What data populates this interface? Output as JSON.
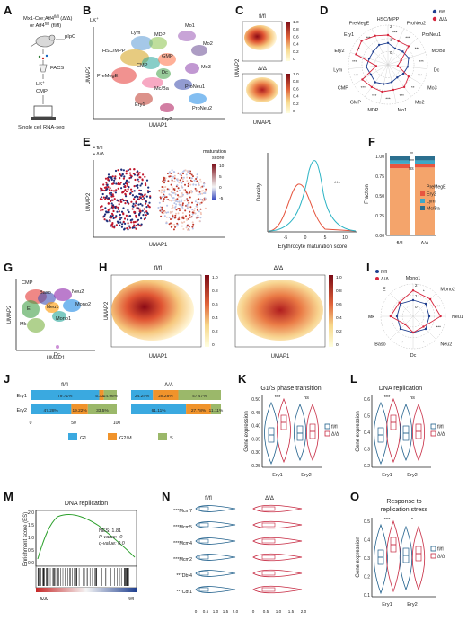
{
  "panels": {
    "A": {
      "letter": "A",
      "line1": "Mx1-Cre;Atf4",
      "sup1": "fl/fl",
      "suf1": " (Δ/Δ)",
      "line2": "or Atf4",
      "sup2": "fl/fl",
      "suf2": " (fl/fl)",
      "pipc": "pIpC",
      "facs": "FACS",
      "lk": "LK",
      "lksup": "+",
      "cmp": "CMP",
      "seq": "Single cell RNA-seq"
    },
    "B": {
      "letter": "B",
      "lk": "LK",
      "lksup": "+",
      "ylabel": "UMAP2",
      "xlabel": "UMAP1",
      "clusters": [
        "Lym",
        "MDP",
        "Mo1",
        "Mo2",
        "HSC/MPP",
        "CMP",
        "GMP",
        "Mo3",
        "Dc",
        "PreMegE",
        "Mc/Ba",
        "ProNeu1",
        "Ery1",
        "ProNeu2",
        "Ery2"
      ]
    },
    "C": {
      "letter": "C",
      "top": "fl/fl",
      "bottom": "Δ/Δ",
      "ylabel": "UMAP2",
      "xlabel": "UMAP1",
      "ticks": [
        "1.0",
        "0.8",
        "0.6",
        "0.4",
        "0.2",
        "0"
      ]
    },
    "D": {
      "letter": "D",
      "legend": [
        "fl/fl",
        "Δ/Δ"
      ],
      "colors": [
        "#1f3f8f",
        "#d7263d"
      ],
      "axes": [
        "HSC/MPP",
        "ProNeu2",
        "ProNeu1",
        "Mc/Ba",
        "Dc",
        "Mo3",
        "Mo2",
        "Mo1",
        "MDP",
        "GMP",
        "CMP",
        "Lym",
        "Ery2",
        "Ery1",
        "PreMegE"
      ],
      "rings": [
        "2",
        "1",
        "0"
      ],
      "stars": [
        "***",
        "***",
        "***",
        "***",
        "***",
        "**",
        "***",
        "***",
        "***",
        "***",
        "***",
        "***",
        "*",
        "***"
      ],
      "ring_values_flfl": [
        0.55,
        0.45,
        0.5,
        0.55,
        0.5,
        0.45,
        0.4,
        0.45,
        0.5,
        0.55,
        0.5,
        0.55,
        0.5,
        0.5,
        0.55
      ],
      "ring_values_dd": [
        0.75,
        0.65,
        0.7,
        0.35,
        0.25,
        0.6,
        0.7,
        0.65,
        0.7,
        0.7,
        0.75,
        0.3,
        0.85,
        0.9,
        0.8
      ]
    },
    "E": {
      "letter": "E",
      "legend": [
        "fl/fl",
        "Δ/Δ"
      ],
      "scale_title": "maturation",
      "scale_title2": "score",
      "scale_ticks": [
        "10",
        "5",
        "0",
        "-5"
      ],
      "ylabel": "UMAP2",
      "xlabel": "UMAP1",
      "density_ylabel": "Density",
      "density_xlabel": "Erythrocyte maturation score",
      "density_xticks": [
        "-5",
        "0",
        "5",
        "10"
      ],
      "stars": "***"
    },
    "F": {
      "letter": "F",
      "ylabel": "Fraction",
      "yticks": [
        "1.00",
        "0.75",
        "0.50",
        "0.25",
        "0.00"
      ],
      "categories": [
        "fl/fl",
        "Δ/Δ"
      ],
      "legend": [
        "PreMegE",
        "Ery2",
        "Lym",
        "Mc/Ba"
      ],
      "colors": [
        "#f4a46b",
        "#e8563f",
        "#3fa7c6",
        "#2b6f8f"
      ],
      "stars": [
        "**",
        "***",
        "ns"
      ]
    },
    "G": {
      "letter": "G",
      "clusters": [
        "CMP",
        "E",
        "Baso",
        "Neu2",
        "Neu1",
        "Mono2",
        "Mono1",
        "Mk",
        "Dc"
      ],
      "ylabel": "UMAP2",
      "xlabel": "UMAP1"
    },
    "H": {
      "letter": "H",
      "left": "fl/fl",
      "right": "Δ/Δ",
      "ylabel": "UMAP2",
      "xlabel": "UMAP1",
      "ticks": [
        "1.0",
        "0.8",
        "0.6",
        "0.4",
        "0.2",
        "0"
      ]
    },
    "I": {
      "letter": "I",
      "legend": [
        "fl/fl",
        "Δ/Δ"
      ],
      "axes": [
        "Mono1",
        "Mono2",
        "Neu1",
        "Neu2",
        "Dc",
        "Baso",
        "Mk",
        "E"
      ],
      "rings": [
        "2",
        "1",
        "0"
      ],
      "stars": [
        "*",
        "**",
        "***",
        "*",
        "*"
      ]
    },
    "J": {
      "letter": "J",
      "left_title": "fl/fl",
      "right_title": "Δ/Δ",
      "rows": [
        "Ery1",
        "Ery2"
      ],
      "xticks": [
        "0",
        "50",
        "100"
      ],
      "legend": [
        "G1",
        "G2/M",
        "S"
      ],
      "colors": [
        "#3aa9e0",
        "#f0932b",
        "#9bb86a"
      ]
    },
    "K": {
      "letter": "K",
      "title": "G1/S phase transition",
      "ylabel": "Gene expression",
      "yticks": [
        "0.50",
        "0.45",
        "0.40",
        "0.35",
        "0.30",
        "0.25"
      ],
      "categories": [
        "Ery1",
        "Ery2"
      ],
      "stars": [
        "***",
        "ns"
      ],
      "legend": [
        "fl/fl",
        "Δ/Δ"
      ]
    },
    "L": {
      "letter": "L",
      "title": "DNA replication",
      "ylabel": "Gene expression",
      "yticks": [
        "0.6",
        "0.5",
        "0.4",
        "0.3",
        "0.2"
      ],
      "categories": [
        "Ery1",
        "Ery2"
      ],
      "stars": [
        "***",
        "ns"
      ],
      "legend": [
        "fl/fl",
        "Δ/Δ"
      ]
    },
    "M": {
      "letter": "M",
      "title": "DNA replication",
      "ylabel": "Enrichment score (ES)",
      "yticks": [
        "2.0",
        "1.5",
        "1.0",
        "0.5",
        "0.0"
      ],
      "nes": "NES: 1.81",
      "pval": "P-value: .0",
      "qval": "q-value: 0.0",
      "left": "Δ/Δ",
      "right": "fl/fl"
    },
    "N": {
      "letter": "N",
      "top_left": "fl/fl",
      "top_right": "Δ/Δ",
      "genes": [
        "***Mcm7",
        "***Mcm5",
        "***Mcm4",
        "***Mcm2",
        "***Dbf4",
        "***Cdt1"
      ],
      "xticks_left": [
        "0",
        "0.5",
        "1.0",
        "1.5",
        "2.0"
      ],
      "xticks_right": [
        "0",
        "0.5",
        "1.0",
        "1.5",
        "2.0"
      ]
    },
    "O": {
      "letter": "O",
      "title1": "Response to",
      "title2": "replication stress",
      "ylabel": "Gene expression",
      "yticks": [
        "0.5",
        "0.4",
        "0.3",
        "0.2",
        "0.1"
      ],
      "categories": [
        "Ery1",
        "Ery2"
      ],
      "stars": [
        "***",
        "*"
      ],
      "legend": [
        "fl/fl",
        "Δ/Δ"
      ]
    }
  },
  "chart_data": [
    {
      "type": "bar",
      "title": "",
      "categories": [
        "Ery1",
        "Ery2"
      ],
      "series_left": [
        {
          "name": "G1",
          "values": [
            79.71,
            47.28
          ]
        },
        {
          "name": "G2/M",
          "values": [
            5.33,
            19.22
          ]
        },
        {
          "name": "S",
          "values": [
            14.96,
            33.5
          ]
        }
      ],
      "series_right": [
        {
          "name": "G1",
          "values": [
            24.24,
            61.11
          ]
        },
        {
          "name": "G2/M",
          "values": [
            28.28,
            27.78
          ]
        },
        {
          "name": "S",
          "values": [
            47.47,
            11.11
          ]
        }
      ],
      "labels_left": [
        [
          "79.71%",
          "5.33%",
          "14.96%"
        ],
        [
          "47.28%",
          "19.22%",
          "33.5%"
        ]
      ],
      "labels_right": [
        [
          "24.24%",
          "28.28%",
          "47.47%"
        ],
        [
          "61.11%",
          "27.78%",
          "11.11%"
        ]
      ]
    },
    {
      "type": "bar",
      "categories": [
        "fl/fl",
        "Δ/Δ"
      ],
      "series": [
        {
          "name": "PreMegE",
          "values": [
            0.85,
            0.86
          ]
        },
        {
          "name": "Ery2",
          "values": [
            0.06,
            0.04
          ]
        },
        {
          "name": "Lym",
          "values": [
            0.04,
            0.05
          ]
        },
        {
          "name": "Mc/Ba",
          "values": [
            0.05,
            0.05
          ]
        }
      ],
      "ylim": [
        0,
        1
      ]
    }
  ]
}
